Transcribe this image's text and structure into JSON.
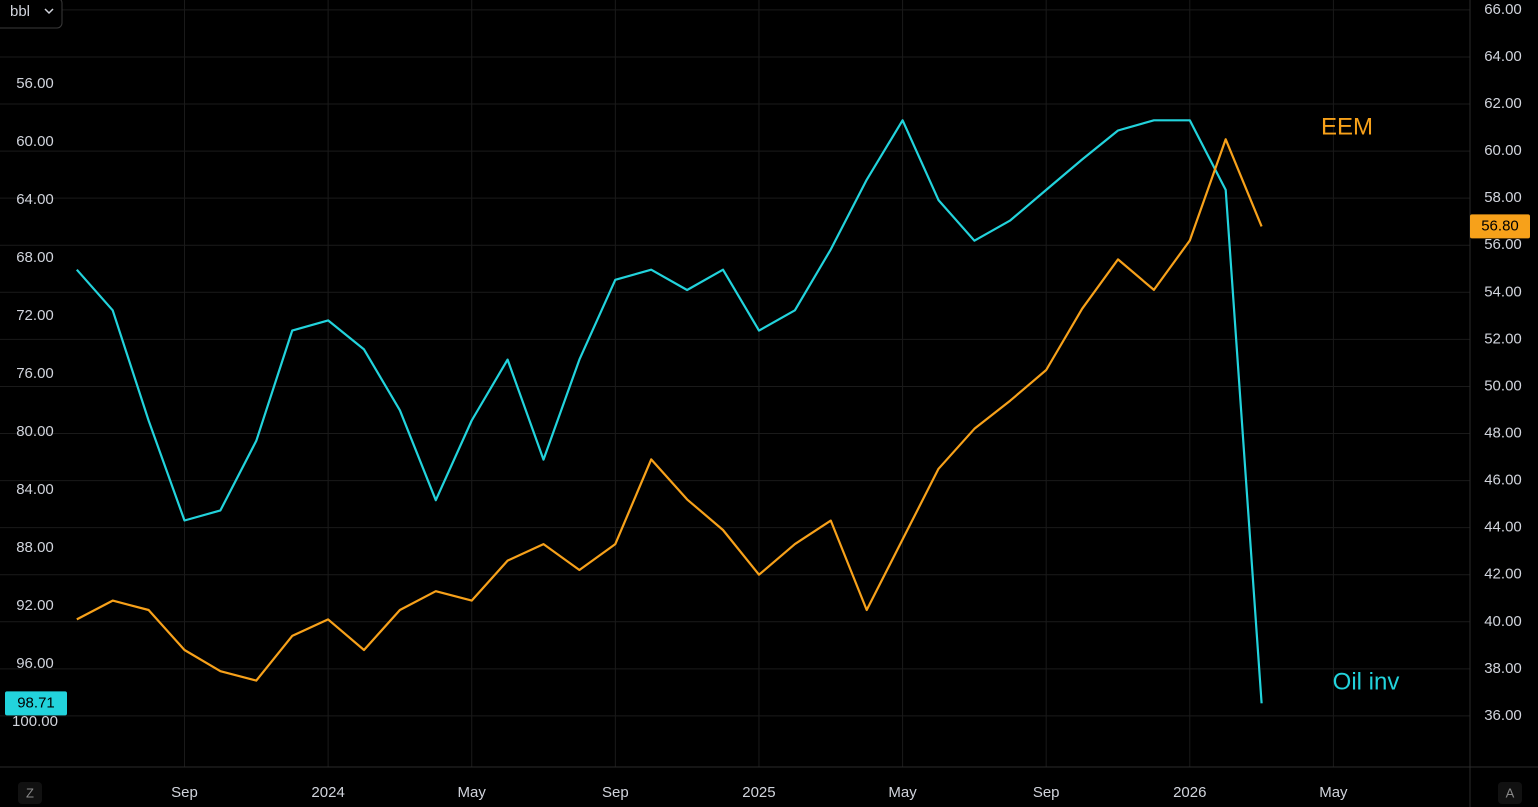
{
  "ui": {
    "left_button": "Z",
    "right_button": "A"
  },
  "chart_data": {
    "type": "line",
    "ylabel": "bbl",
    "x": [
      "2023-06",
      "2023-07",
      "2023-08",
      "2023-09",
      "2023-10",
      "2023-11",
      "2023-12",
      "2024-01",
      "2024-02",
      "2024-03",
      "2024-04",
      "2024-05",
      "2024-06",
      "2024-07",
      "2024-08",
      "2024-09",
      "2024-10",
      "2024-11",
      "2024-12",
      "2025-01",
      "2025-02",
      "2025-03",
      "2025-04",
      "2025-05",
      "2025-06",
      "2025-07",
      "2025-08",
      "2025-09",
      "2025-10",
      "2025-11",
      "2025-12",
      "2026-01",
      "2026-02",
      "2026-03"
    ],
    "xlim": [
      "2023-04",
      "2026-09"
    ],
    "xticks": [
      {
        "value": "2023-09",
        "label": "Sep"
      },
      {
        "value": "2024-01",
        "label": "2024"
      },
      {
        "value": "2024-05",
        "label": "May"
      },
      {
        "value": "2024-09",
        "label": "Sep"
      },
      {
        "value": "2025-01",
        "label": "2025"
      },
      {
        "value": "2025-05",
        "label": "May"
      },
      {
        "value": "2025-09",
        "label": "Sep"
      },
      {
        "value": "2026-01",
        "label": "2026"
      },
      {
        "value": "2026-05",
        "label": "May"
      }
    ],
    "ylim": [
      103.1,
      50.2
    ],
    "yticks": [
      {
        "value": 56,
        "label": "56.00"
      },
      {
        "value": 60,
        "label": "60.00"
      },
      {
        "value": 64,
        "label": "64.00"
      },
      {
        "value": 68,
        "label": "68.00"
      },
      {
        "value": 72,
        "label": "72.00"
      },
      {
        "value": 76,
        "label": "76.00"
      },
      {
        "value": 80,
        "label": "80.00"
      },
      {
        "value": 84,
        "label": "84.00"
      },
      {
        "value": 88,
        "label": "88.00"
      },
      {
        "value": 92,
        "label": "92.00"
      },
      {
        "value": 96,
        "label": "96.00"
      },
      {
        "value": 100,
        "label": "100.00"
      }
    ],
    "y2lim": [
      33.83,
      66.42
    ],
    "y2ticks": [
      {
        "value": 36,
        "label": "36.00"
      },
      {
        "value": 38,
        "label": "38.00"
      },
      {
        "value": 40,
        "label": "40.00"
      },
      {
        "value": 42,
        "label": "42.00"
      },
      {
        "value": 44,
        "label": "44.00"
      },
      {
        "value": 46,
        "label": "46.00"
      },
      {
        "value": 48,
        "label": "48.00"
      },
      {
        "value": 50,
        "label": "50.00"
      },
      {
        "value": 52,
        "label": "52.00"
      },
      {
        "value": 54,
        "label": "54.00"
      },
      {
        "value": 56,
        "label": "56.00"
      },
      {
        "value": 58,
        "label": "58.00"
      },
      {
        "value": 60,
        "label": "60.00"
      },
      {
        "value": 62,
        "label": "62.00"
      },
      {
        "value": 64,
        "label": "64.00"
      },
      {
        "value": 66,
        "label": "66.00"
      }
    ],
    "grid": true,
    "series": [
      {
        "name": "Oil inv",
        "color": "#22d3dc",
        "axis": "y",
        "values": [
          68.8,
          71.6,
          79.2,
          86.1,
          85.4,
          80.6,
          73.0,
          72.3,
          74.3,
          78.5,
          84.7,
          79.2,
          75.0,
          81.9,
          75.0,
          69.5,
          68.8,
          70.2,
          68.8,
          73.0,
          71.6,
          67.4,
          62.6,
          58.5,
          64.0,
          66.8,
          65.4,
          63.3,
          61.2,
          59.2,
          58.5,
          58.5,
          63.3,
          98.71
        ],
        "value_labels": [
          null,
          null,
          null,
          null,
          null,
          null,
          null,
          null,
          null,
          null,
          null,
          null,
          null,
          null,
          null,
          null,
          null,
          null,
          null,
          null,
          null,
          null,
          null,
          null,
          null,
          null,
          null,
          null,
          null,
          null,
          null,
          null,
          null,
          "98.71"
        ]
      },
      {
        "name": "EEM",
        "color": "#f7a11a",
        "axis": "y2",
        "values": [
          40.1,
          40.9,
          40.5,
          38.8,
          37.9,
          37.5,
          39.4,
          40.1,
          38.8,
          40.5,
          41.3,
          40.9,
          42.6,
          43.3,
          42.2,
          43.3,
          46.9,
          45.2,
          43.9,
          42.0,
          43.3,
          44.3,
          40.5,
          43.5,
          46.5,
          48.2,
          49.4,
          50.7,
          53.3,
          55.4,
          54.1,
          56.2,
          60.5,
          56.8
        ],
        "value_labels": [
          null,
          null,
          null,
          null,
          null,
          null,
          null,
          null,
          null,
          null,
          null,
          null,
          null,
          null,
          null,
          null,
          null,
          null,
          null,
          null,
          null,
          null,
          null,
          null,
          null,
          null,
          null,
          null,
          null,
          null,
          null,
          null,
          null,
          "56.80"
        ]
      }
    ]
  }
}
